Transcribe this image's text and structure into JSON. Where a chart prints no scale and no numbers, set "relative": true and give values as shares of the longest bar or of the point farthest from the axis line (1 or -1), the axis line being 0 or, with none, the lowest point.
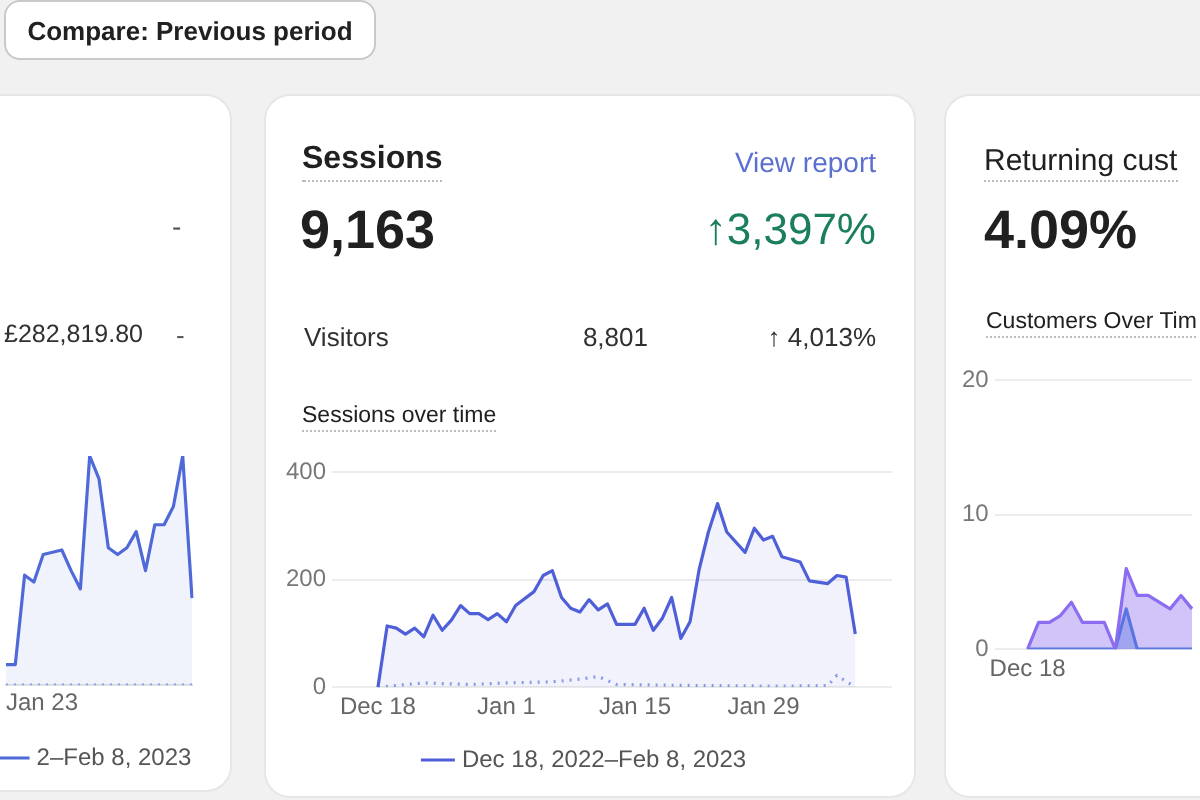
{
  "chart_data": [
    {
      "type": "line",
      "relative": true,
      "annotations": [
        "Compare: Previous period",
        "-",
        "£282,819.80",
        "-",
        "Jan 23"
      ],
      "categories": [
        null,
        null,
        null,
        null,
        null,
        null,
        null,
        null,
        null,
        null,
        null,
        null,
        null,
        null,
        null,
        null,
        null,
        null,
        null,
        null,
        null
      ],
      "grid": false,
      "legend": "bottom",
      "series": [
        {
          "name": "2–Feb 8, 2023",
          "type": "area",
          "color": "#4f6ad8",
          "values": [
            0.09,
            0.09,
            0.48,
            0.45,
            0.57,
            0.58,
            0.59,
            0.5,
            0.42,
            1.0,
            0.9,
            0.6,
            0.57,
            0.6,
            0.67,
            0.5,
            0.7,
            0.7,
            0.78,
            1.0,
            0.38
          ]
        },
        {
          "type": "line",
          "line_style": "dotted",
          "color": "#8fa0e8",
          "values": [
            0,
            0,
            0,
            0,
            0,
            0,
            0,
            0,
            0,
            0,
            0,
            0,
            0,
            0,
            0,
            0,
            0,
            0,
            0,
            0,
            0
          ]
        }
      ]
    },
    {
      "type": "line",
      "title": "Sessions",
      "subtitle": "Sessions over time",
      "annotations": [
        "View report",
        "9,163",
        "↑3,397%",
        "Visitors",
        "8,801",
        "↑ 4,013%"
      ],
      "xlim": [
        "2022-12-13",
        "2023-02-12"
      ],
      "xticks": [
        {
          "value": "2022-12-18",
          "label": "Dec 18"
        },
        {
          "value": "2023-01-01",
          "label": "Jan 1"
        },
        {
          "value": "2023-01-15",
          "label": "Jan 15"
        },
        {
          "value": "2023-01-29",
          "label": "Jan 29"
        }
      ],
      "ylim": [
        0,
        400
      ],
      "yticks": [
        0,
        200,
        400
      ],
      "grid": "y",
      "legend": "bottom",
      "series": [
        {
          "name": "Dec 18, 2022–Feb 8, 2023",
          "type": "area",
          "color": "#4f5fd8",
          "x": [
            "2022-12-18",
            "2022-12-19",
            "2022-12-20",
            "2022-12-21",
            "2022-12-22",
            "2022-12-23",
            "2022-12-24",
            "2022-12-25",
            "2022-12-26",
            "2022-12-27",
            "2022-12-28",
            "2022-12-29",
            "2022-12-30",
            "2022-12-31",
            "2023-01-01",
            "2023-01-02",
            "2023-01-04",
            "2023-01-05",
            "2023-01-06",
            "2023-01-07",
            "2023-01-08",
            "2023-01-09",
            "2023-01-10",
            "2023-01-11",
            "2023-01-12",
            "2023-01-13",
            "2023-01-15",
            "2023-01-16",
            "2023-01-17",
            "2023-01-18",
            "2023-01-19",
            "2023-01-20",
            "2023-01-21",
            "2023-01-22",
            "2023-01-23",
            "2023-01-24",
            "2023-01-25",
            "2023-01-27",
            "2023-01-28",
            "2023-01-29",
            "2023-01-30",
            "2023-01-31",
            "2023-02-02",
            "2023-02-03",
            "2023-02-05",
            "2023-02-06",
            "2023-02-07",
            "2023-02-08"
          ],
          "values": [
            0,
            114,
            110,
            99,
            110,
            94,
            134,
            106,
            125,
            152,
            137,
            137,
            126,
            137,
            122,
            152,
            178,
            208,
            217,
            167,
            147,
            140,
            163,
            144,
            155,
            117,
            117,
            147,
            106,
            129,
            167,
            91,
            122,
            220,
            289,
            342,
            289,
            251,
            296,
            274,
            281,
            243,
            233,
            198,
            193,
            208,
            205,
            99
          ]
        },
        {
          "type": "line",
          "line_style": "dotted",
          "color": "#8fa0e8",
          "x": [
            "2022-12-18",
            "2022-12-23",
            "2022-12-28",
            "2023-01-01",
            "2023-01-06",
            "2023-01-09",
            "2023-01-11",
            "2023-01-13",
            "2023-01-22",
            "2023-01-31",
            "2023-02-05",
            "2023-02-06",
            "2023-02-08"
          ],
          "values": [
            0,
            8,
            5,
            8,
            10,
            15,
            20,
            5,
            3,
            2,
            3,
            22,
            0
          ]
        }
      ]
    },
    {
      "type": "line",
      "title": "Returning cust",
      "subtitle": "Customers Over Tim",
      "annotations": [
        "4.09%"
      ],
      "categories": [
        null,
        null,
        null,
        "Dec 18",
        null,
        null,
        null,
        null,
        null,
        null,
        null,
        null,
        null,
        null,
        null,
        null,
        null,
        null,
        null
      ],
      "ylim": [
        0,
        20
      ],
      "yticks": [
        0,
        10,
        20
      ],
      "grid": "y",
      "legend": false,
      "series": [
        {
          "type": "area",
          "color": "#8c6cf0",
          "values": [
            null,
            null,
            null,
            0,
            2,
            2,
            2.5,
            3.5,
            2,
            2,
            2,
            0,
            6,
            4,
            4,
            3.5,
            3,
            4,
            3
          ]
        },
        {
          "type": "area",
          "color": "#3a7bd5",
          "values": [
            null,
            null,
            null,
            0,
            0,
            0,
            0,
            0,
            0,
            0,
            0,
            0,
            3,
            0,
            0,
            0,
            0,
            0,
            0
          ]
        }
      ]
    }
  ]
}
